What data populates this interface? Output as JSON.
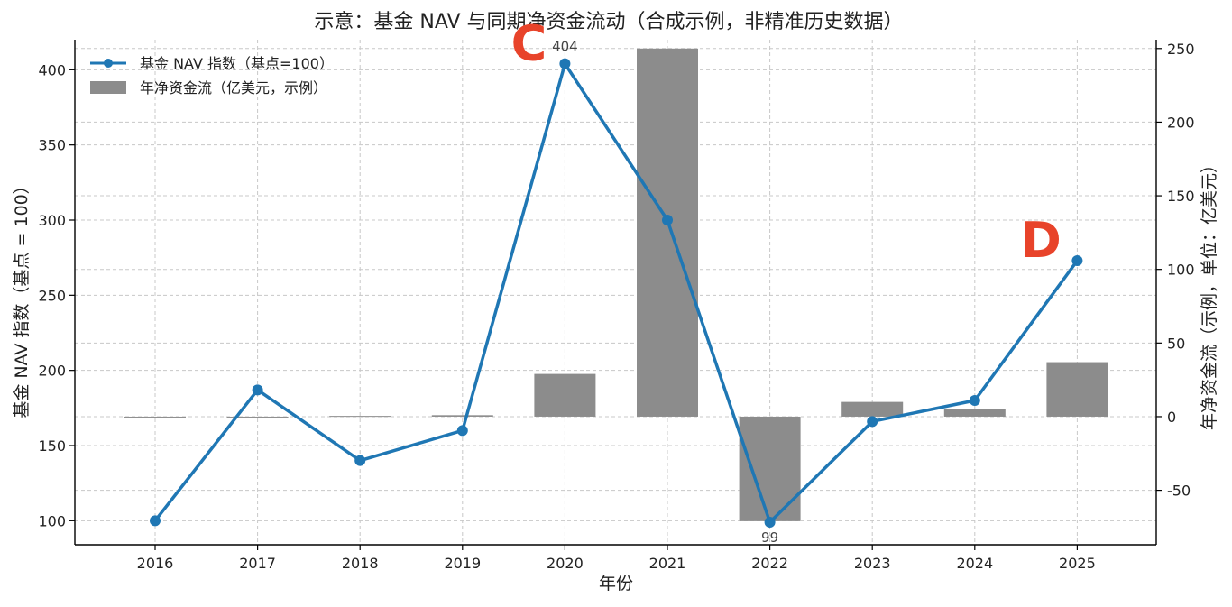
{
  "chart_data": {
    "type": "bar+line",
    "title": "示意：基金 NAV 与同期净资金流动（合成示例，非精准历史数据）",
    "xlabel": "年份",
    "ylabel_left": "基金 NAV 指数（基点 = 100）",
    "ylabel_right": "年净资金流（示例，单位：亿美元）",
    "categories": [
      "2016",
      "2017",
      "2018",
      "2019",
      "2020",
      "2021",
      "2022",
      "2023",
      "2024",
      "2025"
    ],
    "ylim_left": [
      84,
      420
    ],
    "yticks_left": [
      100,
      150,
      200,
      250,
      300,
      350,
      400
    ],
    "ylim_right": [
      -87,
      256
    ],
    "yticks_right": [
      -50,
      0,
      50,
      100,
      150,
      200,
      250
    ],
    "grid": true,
    "legend_position": "top-left",
    "series": [
      {
        "name": "基金 NAV 指数（基点=100）",
        "kind": "line",
        "axis": "left",
        "color": "#1f77b4",
        "values": [
          100,
          187,
          140,
          160,
          404,
          300,
          99,
          166,
          180,
          273
        ]
      },
      {
        "name": "年净资金流（亿美元，示例）",
        "kind": "bar",
        "axis": "right",
        "color": "#8c8c8c",
        "values": [
          0,
          0,
          0.5,
          1,
          29,
          250,
          -71,
          10,
          5,
          37
        ]
      }
    ],
    "data_labels": [
      {
        "index": 4,
        "text": "404"
      },
      {
        "index": 6,
        "text": "99"
      }
    ],
    "annotations": [
      {
        "text": "C",
        "index": 4,
        "color": "#e8432a"
      },
      {
        "text": "D",
        "index": 9,
        "color": "#e8432a"
      }
    ]
  }
}
